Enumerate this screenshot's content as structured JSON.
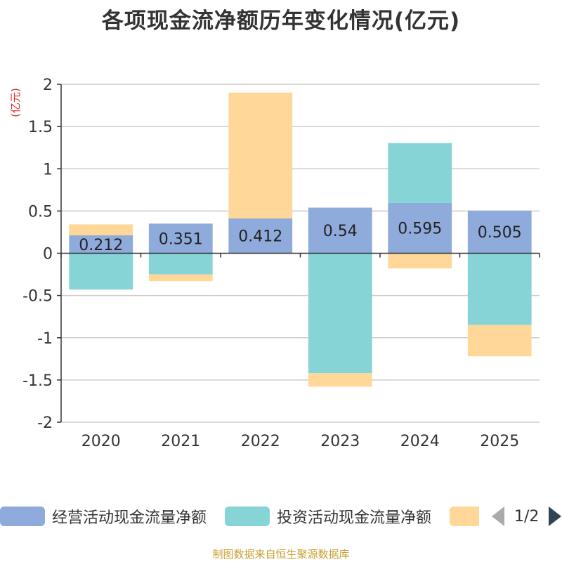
{
  "chart_data": {
    "type": "bar",
    "stacked": true,
    "title": "各项现金流净额历年变化情况(亿元)",
    "ylabel": "(亿元)",
    "xlabel": "",
    "categories": [
      "2020",
      "2021",
      "2022",
      "2023",
      "2024",
      "2025"
    ],
    "ylim": [
      -2,
      2
    ],
    "yticks": [
      2,
      1.5,
      1,
      0.5,
      0,
      -0.5,
      -1,
      -1.5,
      -2
    ],
    "ytick_labels": [
      "2",
      "1.5",
      "1",
      "0.5",
      "0",
      "-0.5",
      "-1",
      "-1.5",
      "-2"
    ],
    "grid": true,
    "series": [
      {
        "name": "经营活动现金流量净额",
        "color": "#8eabdc",
        "values": [
          0.212,
          0.351,
          0.412,
          0.54,
          0.595,
          0.505
        ],
        "labels": [
          "0.212",
          "0.351",
          "0.412",
          "0.54",
          "0.595",
          "0.505"
        ]
      },
      {
        "name": "投资活动现金流量净额",
        "color": "#86d4d6",
        "values": [
          -0.43,
          -0.25,
          0,
          -1.42,
          0.71,
          -0.85
        ]
      },
      {
        "name": "",
        "color": "#ffd899",
        "values": [
          0.13,
          -0.08,
          1.49,
          -0.16,
          -0.18,
          -0.37
        ]
      }
    ],
    "legend_position": "bottom"
  },
  "legend": {
    "items": [
      {
        "label": "经营活动现金流量净额",
        "color": "#8eabdc"
      },
      {
        "label": "投资活动现金流量净额",
        "color": "#86d4d6"
      },
      {
        "label": "",
        "color": "#ffd899"
      }
    ],
    "page": "1/2"
  },
  "source": "制图数据来自恒生聚源数据库"
}
